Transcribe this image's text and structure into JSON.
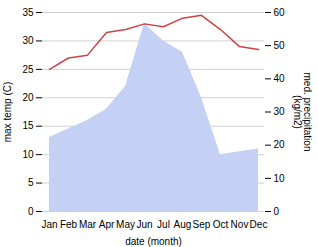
{
  "chart_data": {
    "type": "line",
    "xlabel": "date (month)",
    "ylabel": "max temp (C)",
    "y2label": "med. precipitation\n(kg/m2)",
    "categories": [
      "Jan",
      "Feb",
      "Mar",
      "Apr",
      "May",
      "Jun",
      "Jul",
      "Aug",
      "Sep",
      "Oct",
      "Nov",
      "Dec"
    ],
    "series": [
      {
        "type": "area",
        "color": "#c5d0f5",
        "values": [
          13,
          14.5,
          16,
          18,
          22,
          33,
          30,
          28,
          20,
          10,
          10.5,
          11
        ]
      },
      {
        "type": "line",
        "color": "#cc4444",
        "values": [
          25,
          27,
          27.5,
          31.5,
          32,
          33,
          32.5,
          34,
          34.5,
          32,
          29,
          28.5
        ]
      }
    ],
    "ylim": [
      0,
      35
    ],
    "yticks": [
      0,
      5,
      10,
      15,
      20,
      25,
      30,
      35
    ],
    "y2lim": [
      0,
      60
    ],
    "y2ticks": [
      0,
      10,
      20,
      30,
      40,
      50,
      60
    ],
    "grid": true
  }
}
